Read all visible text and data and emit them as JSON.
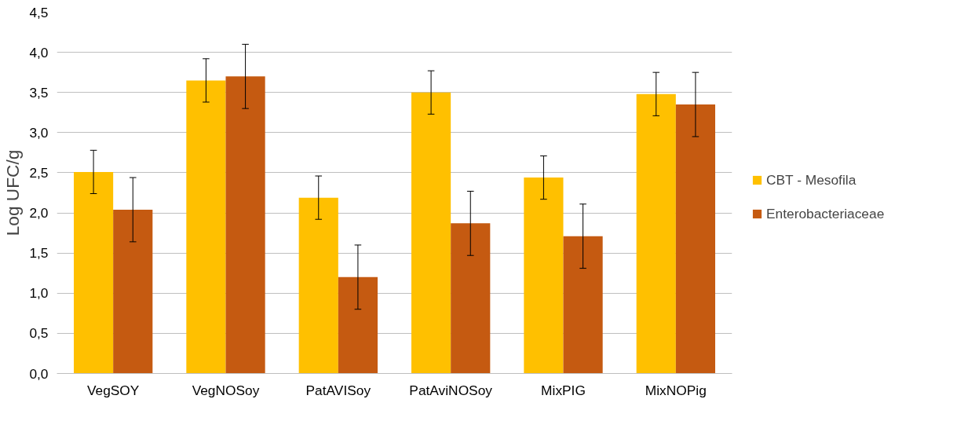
{
  "chart_data": {
    "type": "bar",
    "ylabel": "Log UFC/g",
    "categories": [
      "VegSOY",
      "VegNOSoy",
      "PatAVISoy",
      "PatAviNOSoy",
      "MixPIG",
      "MixNOPig"
    ],
    "series": [
      {
        "name": "CBT - Mesofila",
        "color": "#ffc000",
        "values": [
          2.51,
          3.65,
          2.19,
          3.5,
          2.44,
          3.48
        ],
        "errors": [
          0.27,
          0.27,
          0.27,
          0.27,
          0.27,
          0.27
        ]
      },
      {
        "name": "Enterobacteriaceae",
        "color": "#c55a11",
        "values": [
          2.04,
          3.7,
          1.2,
          1.87,
          1.71,
          3.35
        ],
        "errors": [
          0.4,
          0.4,
          0.4,
          0.4,
          0.4,
          0.4
        ]
      }
    ],
    "ylim": [
      0,
      4.5
    ],
    "yticks": [
      {
        "value": 0,
        "label": "0,0"
      },
      {
        "value": 0.5,
        "label": "0,5"
      },
      {
        "value": 1,
        "label": "1,0"
      },
      {
        "value": 1.5,
        "label": "1,5"
      },
      {
        "value": 2,
        "label": "2,0"
      },
      {
        "value": 2.5,
        "label": "2,5"
      },
      {
        "value": 3,
        "label": "3,0"
      },
      {
        "value": 3.5,
        "label": "3,5"
      },
      {
        "value": 4,
        "label": "4,0"
      },
      {
        "value": 4.5,
        "label": "4,5"
      }
    ],
    "grid": "y",
    "legend": "right"
  }
}
